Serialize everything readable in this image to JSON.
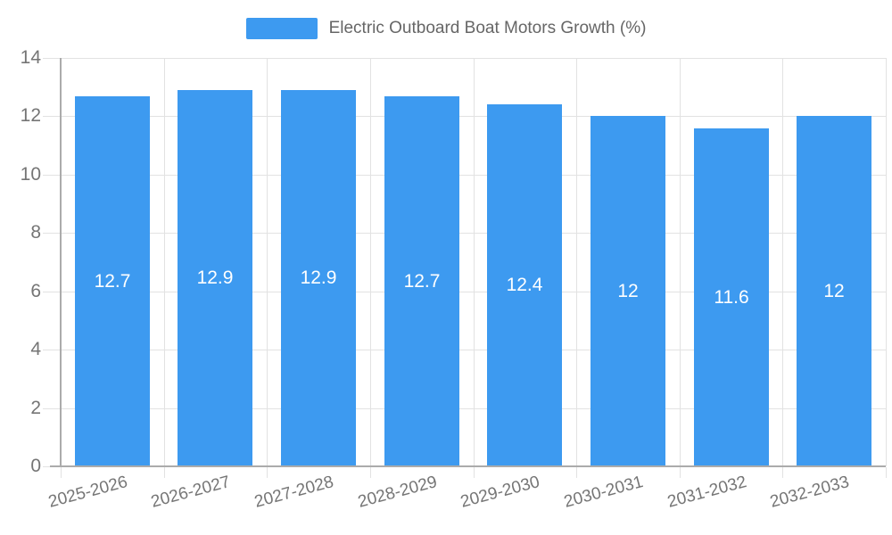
{
  "legend": {
    "label": "Electric Outboard Boat Motors Growth (%)"
  },
  "chart_data": {
    "type": "bar",
    "title": "Electric Outboard Boat Motors Growth (%)",
    "categories": [
      "2025-2026",
      "2026-2027",
      "2027-2028",
      "2028-2029",
      "2029-2030",
      "2030-2031",
      "2031-2032",
      "2032-2033"
    ],
    "values": [
      12.7,
      12.9,
      12.9,
      12.7,
      12.4,
      12,
      11.6,
      12
    ],
    "data_labels": [
      "12.7",
      "12.9",
      "12.9",
      "12.7",
      "12.4",
      "12",
      "11.6",
      "12"
    ],
    "xlabel": "",
    "ylabel": "",
    "ylim": [
      0,
      14
    ],
    "yticks": [
      0,
      2,
      4,
      6,
      8,
      10,
      12,
      14
    ],
    "grid": "on",
    "legend_position": "top-center",
    "x_label_rotation_deg": -15,
    "colors": {
      "bar": "#3d9af0",
      "grid": "#e2e2e2",
      "axis": "#ababab",
      "tick_label": "#757575",
      "legend_text": "#666666",
      "data_label": "#ffffff",
      "background": "#ffffff"
    }
  }
}
